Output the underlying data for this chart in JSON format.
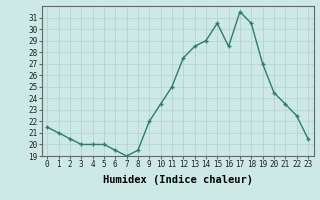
{
  "x": [
    0,
    1,
    2,
    3,
    4,
    5,
    6,
    7,
    8,
    9,
    10,
    11,
    12,
    13,
    14,
    15,
    16,
    17,
    18,
    19,
    20,
    21,
    22,
    23
  ],
  "y": [
    21.5,
    21.0,
    20.5,
    20.0,
    20.0,
    20.0,
    19.5,
    19.0,
    19.5,
    22.0,
    23.5,
    25.0,
    27.5,
    28.5,
    29.0,
    30.5,
    28.5,
    31.5,
    30.5,
    27.0,
    24.5,
    23.5,
    22.5,
    20.5
  ],
  "line_color": "#2e7d6e",
  "marker": "+",
  "bg_color": "#cce9e5",
  "grid_color": "#b8d8d4",
  "xlabel": "Humidex (Indice chaleur)",
  "xlim": [
    -0.5,
    23.5
  ],
  "ylim": [
    19,
    32
  ],
  "yticks": [
    19,
    20,
    21,
    22,
    23,
    24,
    25,
    26,
    27,
    28,
    29,
    30,
    31
  ],
  "xticks": [
    0,
    1,
    2,
    3,
    4,
    5,
    6,
    7,
    8,
    9,
    10,
    11,
    12,
    13,
    14,
    15,
    16,
    17,
    18,
    19,
    20,
    21,
    22,
    23
  ],
  "tick_fontsize": 5.5,
  "xlabel_fontsize": 7.5,
  "line_width": 1.0,
  "marker_size": 3.5
}
